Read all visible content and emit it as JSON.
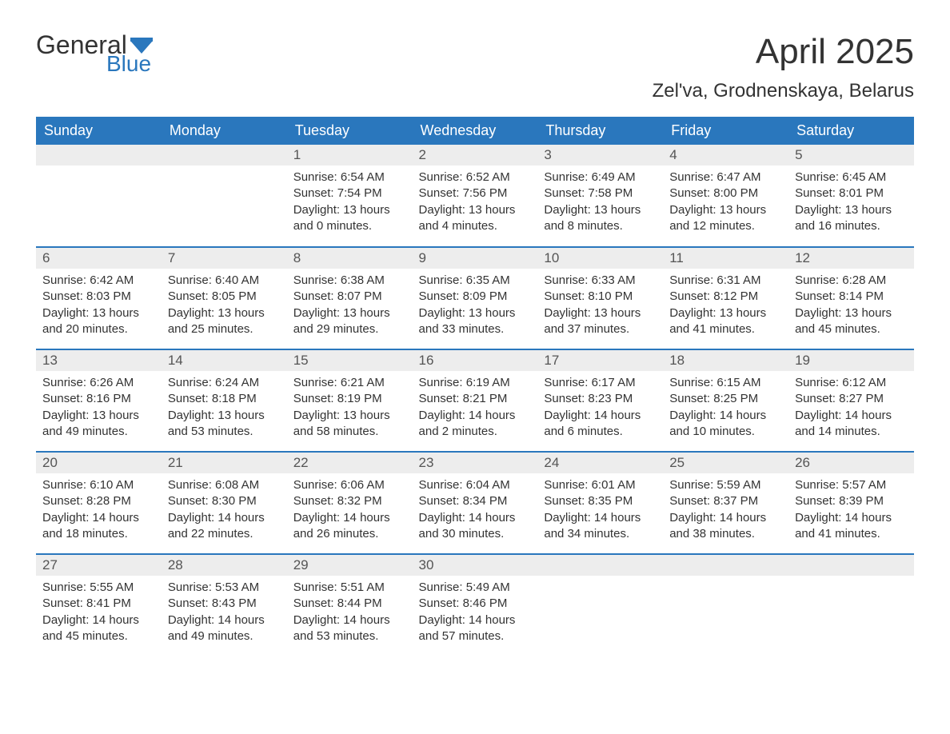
{
  "brand": {
    "word1": "General",
    "word2": "Blue",
    "word1_color": "#333333",
    "word2_color": "#2a77bd",
    "flag_color": "#2a77bd"
  },
  "header": {
    "title": "April 2025",
    "location": "Zel'va, Grodnenskaya, Belarus",
    "title_fontsize": 44,
    "location_fontsize": 24,
    "text_color": "#333333"
  },
  "calendar": {
    "type": "table",
    "header_bg": "#2a77bd",
    "header_text_color": "#ffffff",
    "daynum_bg": "#ededed",
    "daynum_text_color": "#555555",
    "body_text_color": "#333333",
    "row_divider_color": "#2a77bd",
    "background_color": "#ffffff",
    "body_fontsize": 15,
    "header_fontsize": 18,
    "columns": [
      "Sunday",
      "Monday",
      "Tuesday",
      "Wednesday",
      "Thursday",
      "Friday",
      "Saturday"
    ],
    "weeks": [
      [
        null,
        null,
        {
          "n": "1",
          "sunrise": "6:54 AM",
          "sunset": "7:54 PM",
          "daylight": "13 hours and 0 minutes."
        },
        {
          "n": "2",
          "sunrise": "6:52 AM",
          "sunset": "7:56 PM",
          "daylight": "13 hours and 4 minutes."
        },
        {
          "n": "3",
          "sunrise": "6:49 AM",
          "sunset": "7:58 PM",
          "daylight": "13 hours and 8 minutes."
        },
        {
          "n": "4",
          "sunrise": "6:47 AM",
          "sunset": "8:00 PM",
          "daylight": "13 hours and 12 minutes."
        },
        {
          "n": "5",
          "sunrise": "6:45 AM",
          "sunset": "8:01 PM",
          "daylight": "13 hours and 16 minutes."
        }
      ],
      [
        {
          "n": "6",
          "sunrise": "6:42 AM",
          "sunset": "8:03 PM",
          "daylight": "13 hours and 20 minutes."
        },
        {
          "n": "7",
          "sunrise": "6:40 AM",
          "sunset": "8:05 PM",
          "daylight": "13 hours and 25 minutes."
        },
        {
          "n": "8",
          "sunrise": "6:38 AM",
          "sunset": "8:07 PM",
          "daylight": "13 hours and 29 minutes."
        },
        {
          "n": "9",
          "sunrise": "6:35 AM",
          "sunset": "8:09 PM",
          "daylight": "13 hours and 33 minutes."
        },
        {
          "n": "10",
          "sunrise": "6:33 AM",
          "sunset": "8:10 PM",
          "daylight": "13 hours and 37 minutes."
        },
        {
          "n": "11",
          "sunrise": "6:31 AM",
          "sunset": "8:12 PM",
          "daylight": "13 hours and 41 minutes."
        },
        {
          "n": "12",
          "sunrise": "6:28 AM",
          "sunset": "8:14 PM",
          "daylight": "13 hours and 45 minutes."
        }
      ],
      [
        {
          "n": "13",
          "sunrise": "6:26 AM",
          "sunset": "8:16 PM",
          "daylight": "13 hours and 49 minutes."
        },
        {
          "n": "14",
          "sunrise": "6:24 AM",
          "sunset": "8:18 PM",
          "daylight": "13 hours and 53 minutes."
        },
        {
          "n": "15",
          "sunrise": "6:21 AM",
          "sunset": "8:19 PM",
          "daylight": "13 hours and 58 minutes."
        },
        {
          "n": "16",
          "sunrise": "6:19 AM",
          "sunset": "8:21 PM",
          "daylight": "14 hours and 2 minutes."
        },
        {
          "n": "17",
          "sunrise": "6:17 AM",
          "sunset": "8:23 PM",
          "daylight": "14 hours and 6 minutes."
        },
        {
          "n": "18",
          "sunrise": "6:15 AM",
          "sunset": "8:25 PM",
          "daylight": "14 hours and 10 minutes."
        },
        {
          "n": "19",
          "sunrise": "6:12 AM",
          "sunset": "8:27 PM",
          "daylight": "14 hours and 14 minutes."
        }
      ],
      [
        {
          "n": "20",
          "sunrise": "6:10 AM",
          "sunset": "8:28 PM",
          "daylight": "14 hours and 18 minutes."
        },
        {
          "n": "21",
          "sunrise": "6:08 AM",
          "sunset": "8:30 PM",
          "daylight": "14 hours and 22 minutes."
        },
        {
          "n": "22",
          "sunrise": "6:06 AM",
          "sunset": "8:32 PM",
          "daylight": "14 hours and 26 minutes."
        },
        {
          "n": "23",
          "sunrise": "6:04 AM",
          "sunset": "8:34 PM",
          "daylight": "14 hours and 30 minutes."
        },
        {
          "n": "24",
          "sunrise": "6:01 AM",
          "sunset": "8:35 PM",
          "daylight": "14 hours and 34 minutes."
        },
        {
          "n": "25",
          "sunrise": "5:59 AM",
          "sunset": "8:37 PM",
          "daylight": "14 hours and 38 minutes."
        },
        {
          "n": "26",
          "sunrise": "5:57 AM",
          "sunset": "8:39 PM",
          "daylight": "14 hours and 41 minutes."
        }
      ],
      [
        {
          "n": "27",
          "sunrise": "5:55 AM",
          "sunset": "8:41 PM",
          "daylight": "14 hours and 45 minutes."
        },
        {
          "n": "28",
          "sunrise": "5:53 AM",
          "sunset": "8:43 PM",
          "daylight": "14 hours and 49 minutes."
        },
        {
          "n": "29",
          "sunrise": "5:51 AM",
          "sunset": "8:44 PM",
          "daylight": "14 hours and 53 minutes."
        },
        {
          "n": "30",
          "sunrise": "5:49 AM",
          "sunset": "8:46 PM",
          "daylight": "14 hours and 57 minutes."
        },
        null,
        null,
        null
      ]
    ],
    "labels": {
      "sunrise_prefix": "Sunrise: ",
      "sunset_prefix": "Sunset: ",
      "daylight_prefix": "Daylight: "
    }
  }
}
